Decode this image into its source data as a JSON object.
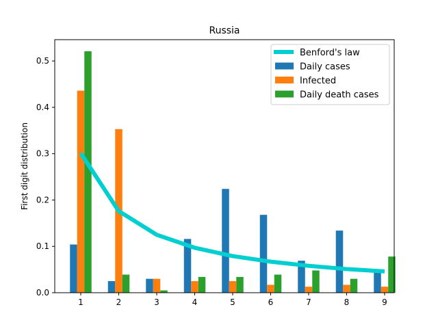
{
  "chart_data": {
    "type": "bar",
    "title": "Russia",
    "xlabel": "",
    "ylabel": "First digit distribution",
    "categories": [
      "1",
      "2",
      "3",
      "4",
      "5",
      "6",
      "7",
      "8",
      "9"
    ],
    "ylim": [
      0,
      0.546
    ],
    "yticks": [
      "0.0",
      "0.1",
      "0.2",
      "0.3",
      "0.4",
      "0.5"
    ],
    "grid": false,
    "legend_position": "top-right",
    "line_series": {
      "name": "Benford's law",
      "color": "#00cfd1",
      "values": [
        0.301,
        0.176,
        0.125,
        0.097,
        0.079,
        0.067,
        0.058,
        0.051,
        0.046
      ]
    },
    "series": [
      {
        "name": "Daily cases",
        "color": "#1f77b4",
        "values": [
          0.104,
          0.025,
          0.03,
          0.116,
          0.224,
          0.168,
          0.069,
          0.134,
          0.047
        ]
      },
      {
        "name": "Infected",
        "color": "#ff7f0e",
        "values": [
          0.436,
          0.353,
          0.03,
          0.025,
          0.025,
          0.017,
          0.013,
          0.017,
          0.013
        ]
      },
      {
        "name": "Daily death cases",
        "color": "#2ca02c",
        "values": [
          0.521,
          0.039,
          0.005,
          0.034,
          0.034,
          0.039,
          0.048,
          0.03,
          0.078
        ]
      }
    ]
  }
}
